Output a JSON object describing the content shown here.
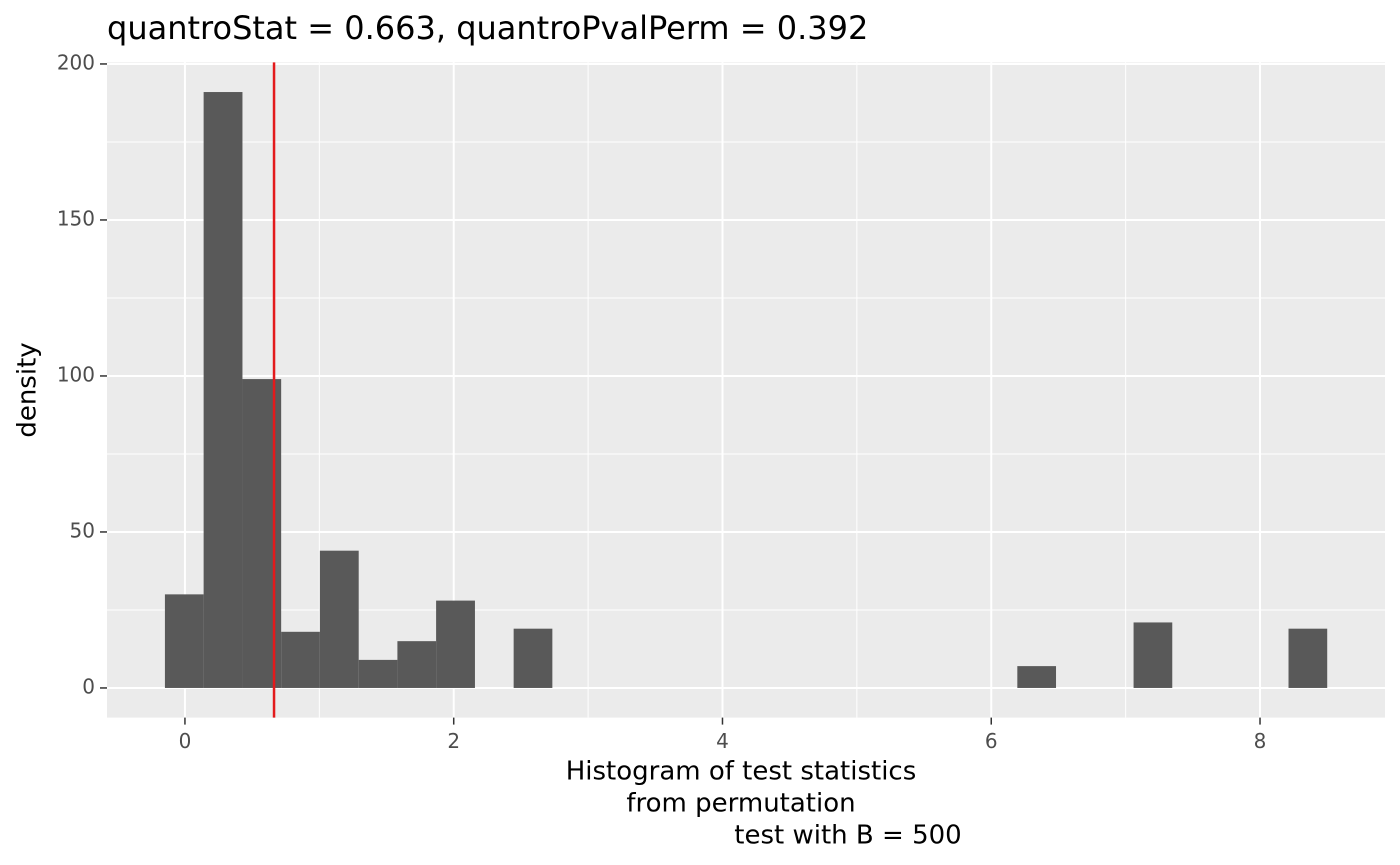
{
  "chart_data": {
    "type": "histogram",
    "title": "quantroStat = 0.663, quantroPvalPerm = 0.392",
    "xlabel": [
      "Histogram of test statistics",
      "from permutation",
      "test with B = 500"
    ],
    "ylabel": "density",
    "bins": [
      -0.149,
      0.139,
      0.428,
      0.716,
      1.004,
      1.293,
      1.581,
      1.869,
      2.158,
      2.446,
      2.734,
      3.022,
      3.311,
      3.599,
      3.887,
      4.176,
      4.464,
      4.752,
      5.041,
      5.329,
      5.617,
      5.905,
      6.194,
      6.482,
      6.77,
      7.059,
      7.347,
      7.635,
      7.924,
      8.212,
      8.5
    ],
    "values": [
      30,
      191,
      99,
      18,
      44,
      9,
      15,
      28,
      0,
      19,
      0,
      0,
      0,
      0,
      0,
      0,
      0,
      0,
      0,
      0,
      0,
      0,
      7,
      0,
      0,
      21,
      0,
      0,
      0,
      19
    ],
    "color": "#595959",
    "vline": 0.663,
    "vline_color": "#e31a1c",
    "xlim": [
      -0.58,
      8.93
    ],
    "ylim": [
      -9.5,
      200.5
    ],
    "xticks": [
      0,
      2,
      4,
      6,
      8
    ],
    "yticks": [
      0,
      50,
      100,
      150,
      200
    ],
    "x_minor_grid": [
      1,
      3,
      5,
      7
    ],
    "y_minor_grid": [
      25,
      75,
      125,
      175
    ],
    "grid": true
  }
}
